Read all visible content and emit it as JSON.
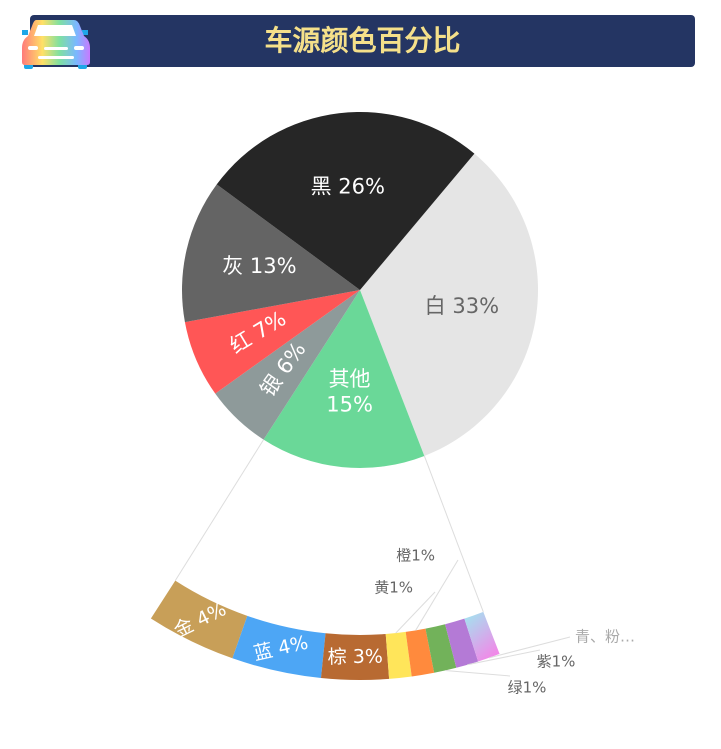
{
  "header": {
    "title": "车源颜色百分比",
    "icon": "rainbow-car-icon"
  },
  "chart_data": {
    "type": "pie",
    "title": "车源颜色百分比",
    "start_angle_deg_clockwise_from_top": 40,
    "slices": [
      {
        "name": "白",
        "value": 33,
        "label": "白 33%",
        "color": "#e5e5e5",
        "label_color": "#666666"
      },
      {
        "name": "其他",
        "value": 15,
        "label": "其他\n15%",
        "label_lines": [
          "其他",
          "15%"
        ],
        "color": "#6ad898",
        "label_color": "#ffffff"
      },
      {
        "name": "银",
        "value": 6,
        "label": "银 6%",
        "color": "#8e9a9a",
        "label_color": "#ffffff"
      },
      {
        "name": "红",
        "value": 7,
        "label": "红 7%",
        "color": "#ff5656",
        "label_color": "#ffffff"
      },
      {
        "name": "灰",
        "value": 13,
        "label": "灰 13%",
        "color": "#646464",
        "label_color": "#ffffff"
      },
      {
        "name": "黑",
        "value": 26,
        "label": "黑 26%",
        "color": "#262626",
        "label_color": "#ffffff"
      }
    ],
    "breakdown_of": "其他",
    "breakdown": [
      {
        "name": "金",
        "value": 4,
        "label": "金 4%",
        "color": "#c89f58",
        "inside": true
      },
      {
        "name": "蓝",
        "value": 4,
        "label": "蓝 4%",
        "color": "#4da6f5",
        "inside": true
      },
      {
        "name": "棕",
        "value": 3,
        "label": "棕 3%",
        "color": "#b86a32",
        "inside": true
      },
      {
        "name": "黄",
        "value": 1,
        "label": "黄1%",
        "color": "#ffe55a",
        "inside": false
      },
      {
        "name": "橙",
        "value": 1,
        "label": "橙1%",
        "color": "#ff8a3d",
        "inside": false
      },
      {
        "name": "绿",
        "value": 1,
        "label": "绿1%",
        "color": "#72b25a",
        "inside": false
      },
      {
        "name": "紫",
        "value": 1,
        "label": "紫1%",
        "color": "#b47ad6",
        "inside": false
      },
      {
        "name": "青、粉",
        "value": 1,
        "label": "青、粉…",
        "color": "#9ee8f0",
        "color2": "#f08ae8",
        "inside": false,
        "label_color": "#aaaaaa"
      }
    ]
  }
}
